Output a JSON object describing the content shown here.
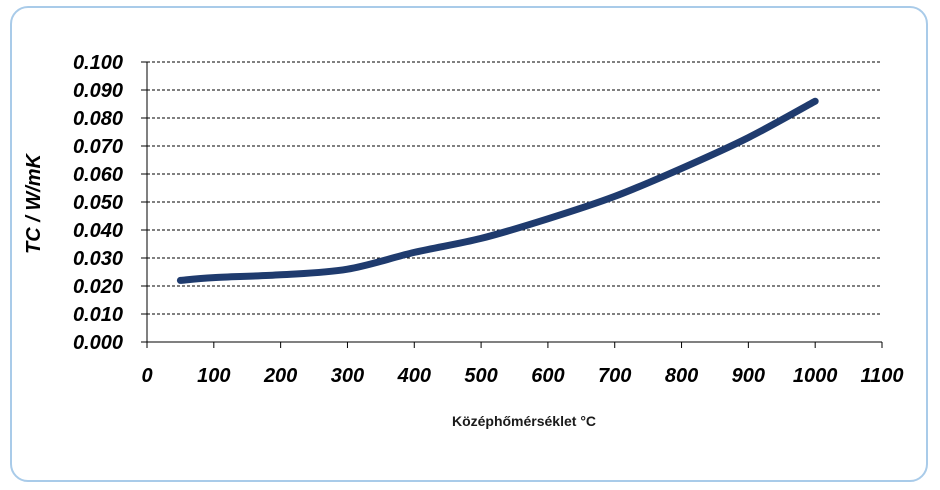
{
  "chart_data": {
    "type": "line",
    "xlabel": "Középhőmérséklet °C",
    "ylabel": "TC / W/mK",
    "xlim": [
      0,
      1100
    ],
    "ylim": [
      0.0,
      0.1
    ],
    "x_ticks": [
      "0",
      "100",
      "200",
      "300",
      "400",
      "500",
      "600",
      "700",
      "800",
      "900",
      "1000",
      "1100"
    ],
    "y_ticks": [
      "0.000",
      "0.010",
      "0.020",
      "0.030",
      "0.040",
      "0.050",
      "0.060",
      "0.070",
      "0.080",
      "0.090",
      "0.100"
    ],
    "grid": "horizontal-dashed",
    "series": [
      {
        "color": "#1f3b6e",
        "x": [
          50,
          100,
          200,
          300,
          400,
          500,
          600,
          700,
          800,
          900,
          1000
        ],
        "y": [
          0.022,
          0.023,
          0.024,
          0.026,
          0.032,
          0.037,
          0.044,
          0.052,
          0.062,
          0.073,
          0.086
        ]
      }
    ]
  }
}
